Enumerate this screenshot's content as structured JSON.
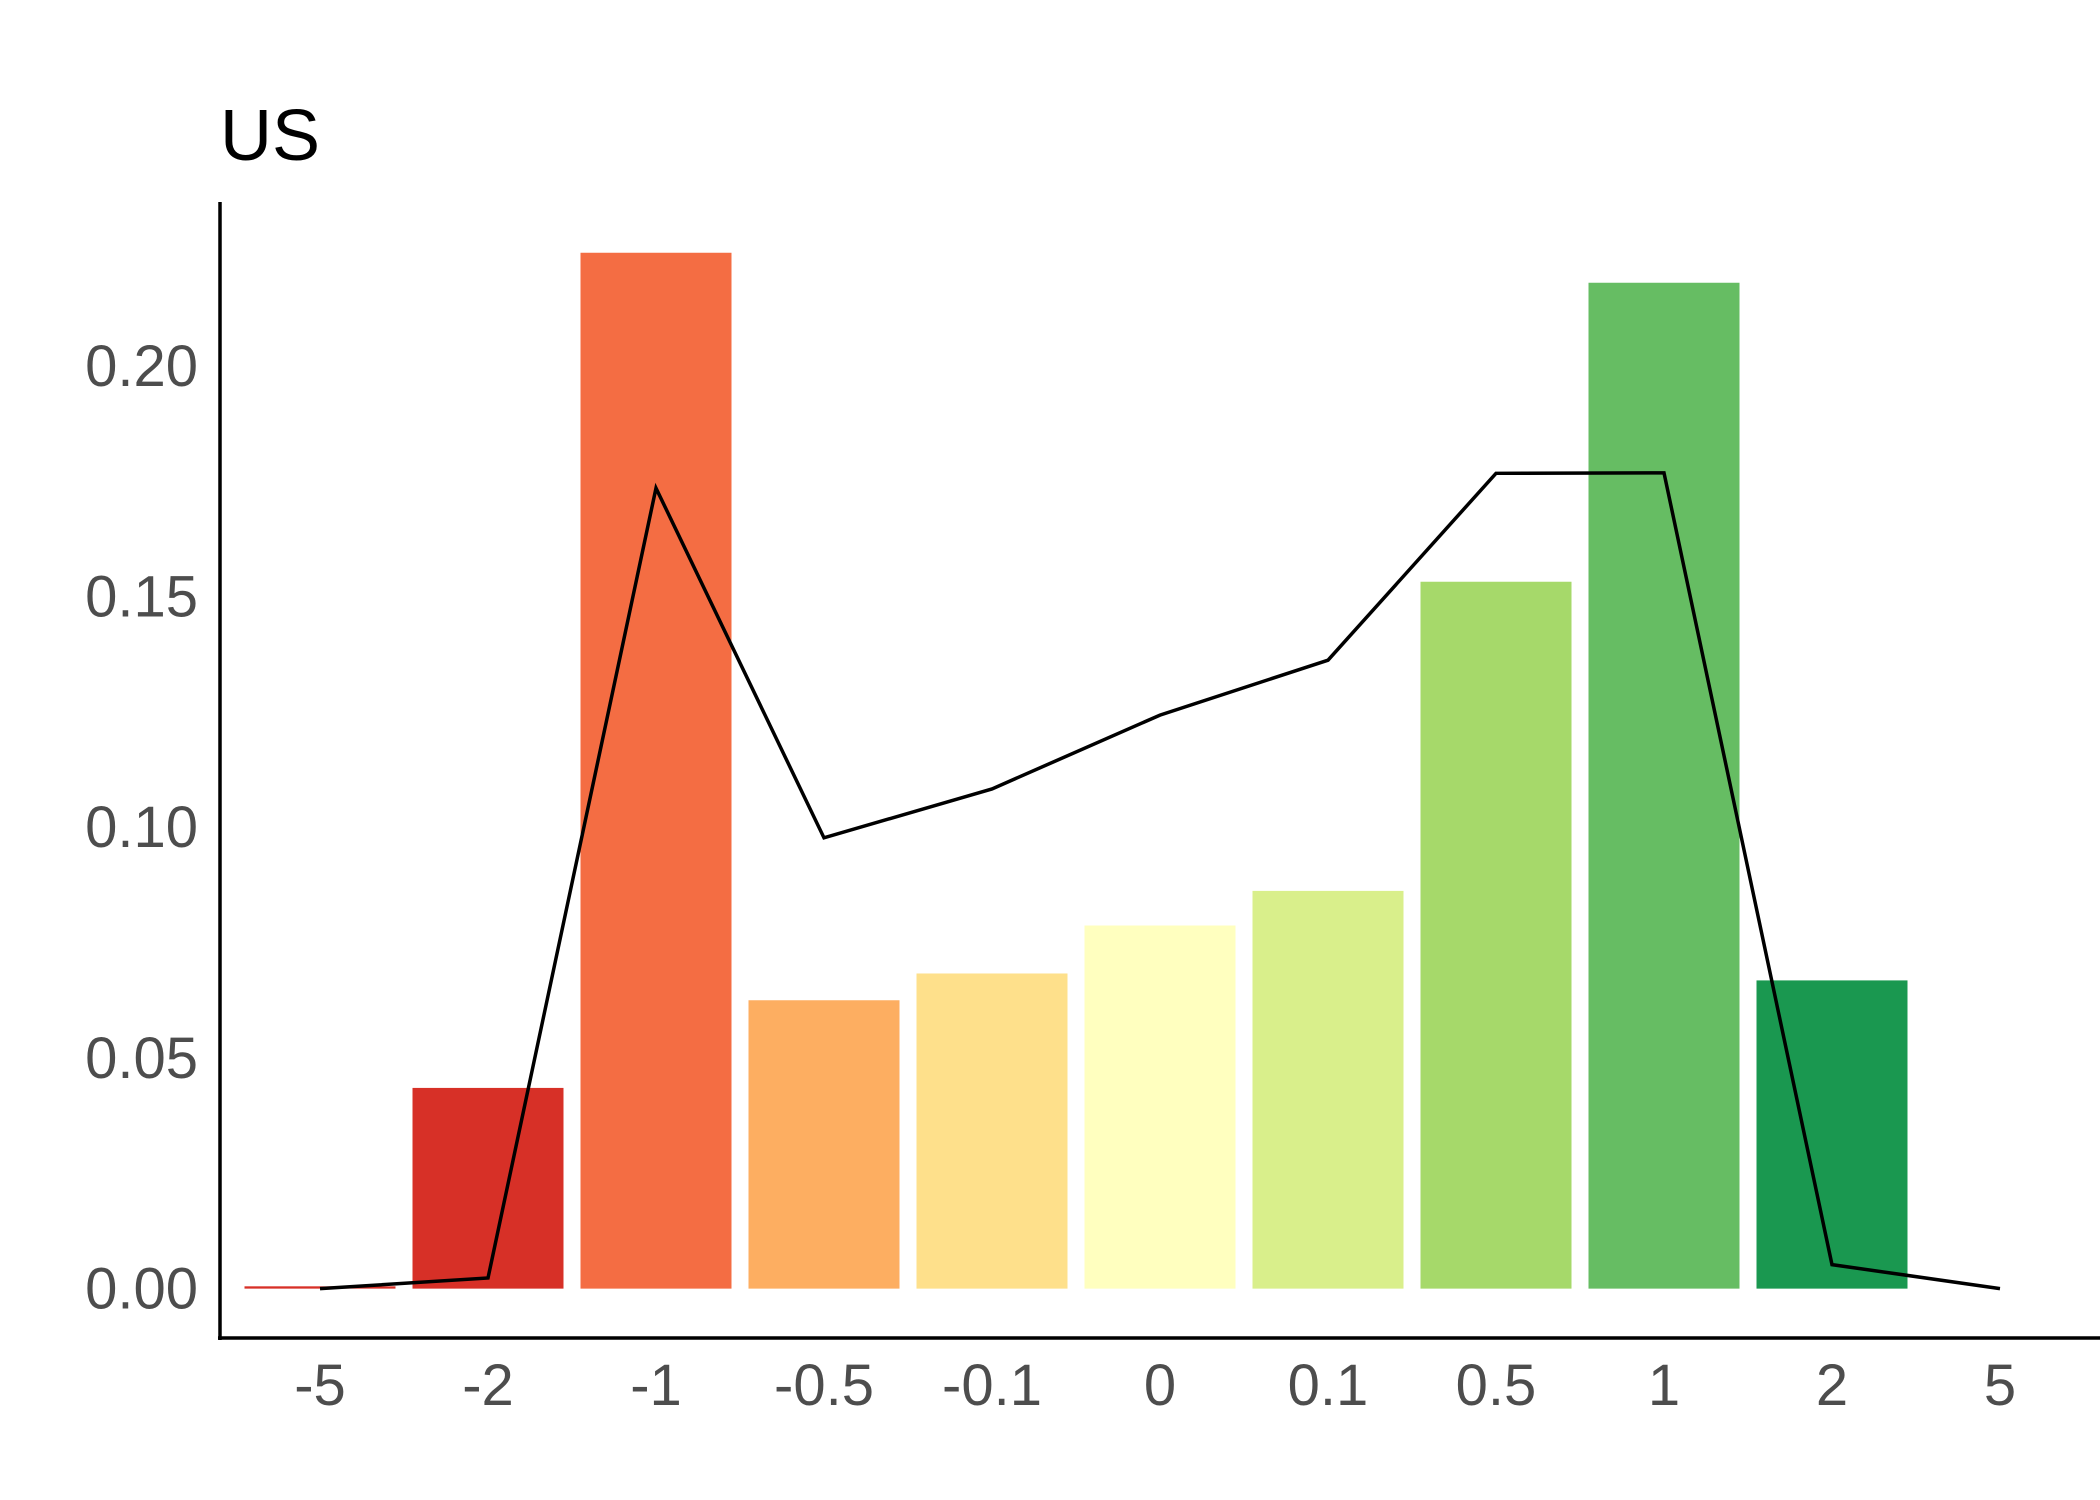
{
  "chart_data": {
    "type": "bar",
    "title": "US",
    "xlabel": "",
    "ylabel": "",
    "categories": [
      "-5",
      "-2",
      "-1",
      "-0.5",
      "-0.1",
      "0",
      "0.1",
      "0.5",
      "1",
      "2",
      "5"
    ],
    "ylim": [
      -0.0107,
      0.2355
    ],
    "yticks": [
      0.0,
      0.05,
      0.1,
      0.15,
      0.2
    ],
    "ytick_labels": [
      "0.00",
      "0.05",
      "0.10",
      "0.15",
      "0.20"
    ],
    "grid": false,
    "legend": "none",
    "series": [
      {
        "type": "bar",
        "values": [
          0.0005,
          0.0435,
          0.2245,
          0.0625,
          0.0683,
          0.0787,
          0.0862,
          0.1532,
          0.218,
          0.0668,
          0.0
        ],
        "colors": [
          "#d73027",
          "#d73027",
          "#f46d43",
          "#fdae61",
          "#fee08b",
          "#ffffbf",
          "#d9ef8b",
          "#a6d96a",
          "#66bd63",
          "#1a9850",
          "#1a9850"
        ]
      },
      {
        "type": "line",
        "color": "#000000",
        "values": [
          0.0,
          0.0023,
          0.1735,
          0.0977,
          0.1083,
          0.1243,
          0.1362,
          0.1767,
          0.1768,
          0.0052,
          0.0
        ]
      }
    ]
  }
}
